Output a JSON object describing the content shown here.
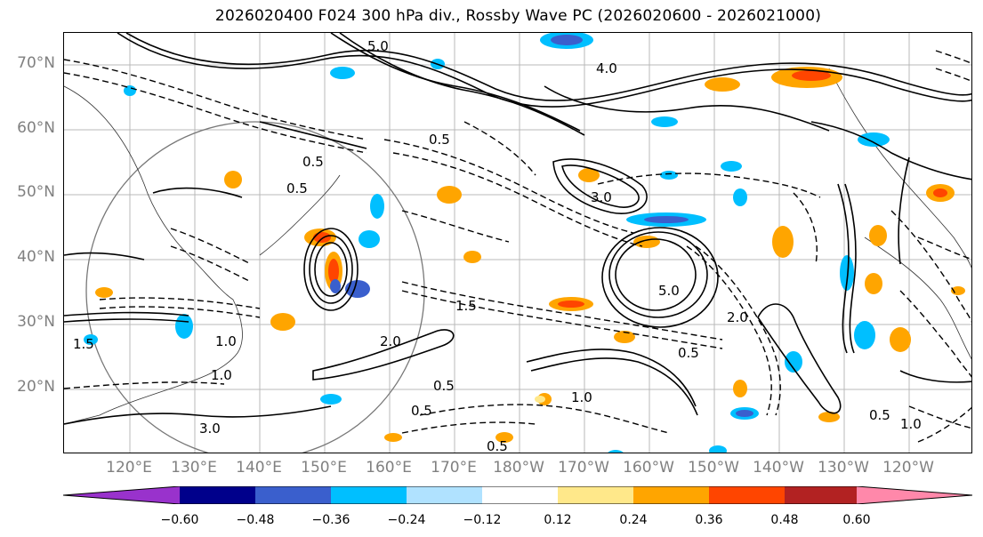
{
  "title": "2026020400 F024 300 hPa div., Rossby Wave PC (2026020600 - 2026021000)",
  "lat_labels": [
    "70°N",
    "60°N",
    "50°N",
    "40°N",
    "30°N",
    "20°N"
  ],
  "lon_labels": [
    "120°E",
    "130°E",
    "140°E",
    "150°E",
    "160°E",
    "170°E",
    "180°W",
    "170°W",
    "160°W",
    "150°W",
    "140°W",
    "130°W",
    "120°W"
  ],
  "colorbar": {
    "ticks": [
      "−0.60",
      "−0.48",
      "−0.36",
      "−0.24",
      "−0.12",
      "0.12",
      "0.24",
      "0.36",
      "0.48",
      "0.60"
    ],
    "colors": [
      "#9932cc",
      "#00008b",
      "#3a5fcd",
      "#00bfff",
      "#b0e2ff",
      "#ffffff",
      "#ffe88a",
      "#ffa500",
      "#ff4500",
      "#b22222",
      "#ff88aa"
    ]
  },
  "contour_labels": [
    "5.0",
    "4.0",
    "5.0",
    "3.0",
    "3.0",
    "2.0",
    "2.0",
    "1.5",
    "1.5",
    "1.0",
    "1.0",
    "1.0",
    "1.0",
    "0.5",
    "0.5",
    "0.5",
    "0.5",
    "0.5",
    "0.5",
    "0.5",
    "0.5"
  ]
}
